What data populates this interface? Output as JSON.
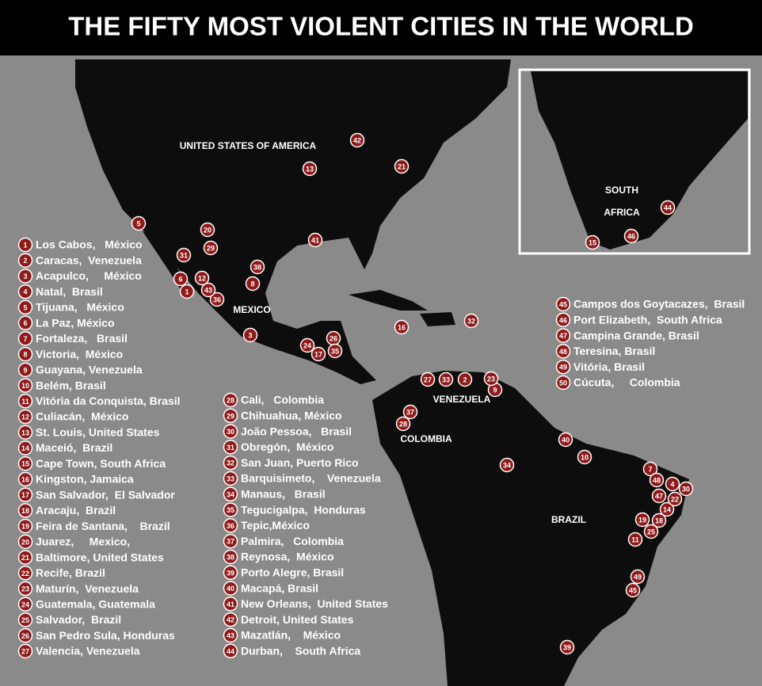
{
  "title": "THE FIFTY MOST VIOLENT CITIES IN THE WORLD",
  "country_labels": [
    "UNITED STATES OF AMERICA",
    "MEXICO",
    "VENEZUELA",
    "COLOMBIA",
    "BRAZIL"
  ],
  "inset_labels": [
    "SOUTH",
    "AFRICA"
  ],
  "cities": [
    {
      "rank": 1,
      "name": "Los Cabos,   México"
    },
    {
      "rank": 2,
      "name": "Caracas,  Venezuela"
    },
    {
      "rank": 3,
      "name": "Acapulco,     México"
    },
    {
      "rank": 4,
      "name": "Natal,  Brasil"
    },
    {
      "rank": 5,
      "name": "Tijuana,   México"
    },
    {
      "rank": 6,
      "name": "La Paz, México"
    },
    {
      "rank": 7,
      "name": "Fortaleza,   Brasil"
    },
    {
      "rank": 8,
      "name": "Victoria,  México"
    },
    {
      "rank": 9,
      "name": "Guayana, Venezuela"
    },
    {
      "rank": 10,
      "name": "Belém, Brasil"
    },
    {
      "rank": 11,
      "name": "Vitória da Conquista, Brasil"
    },
    {
      "rank": 12,
      "name": "Culiacán,  México"
    },
    {
      "rank": 13,
      "name": "St. Louis, United States"
    },
    {
      "rank": 14,
      "name": "Maceió,  Brazil"
    },
    {
      "rank": 15,
      "name": "Cape Town, South Africa"
    },
    {
      "rank": 16,
      "name": "Kingston, Jamaica"
    },
    {
      "rank": 17,
      "name": "San Salvador,  El Salvador"
    },
    {
      "rank": 18,
      "name": "Aracaju,  Brazil"
    },
    {
      "rank": 19,
      "name": "Feira de Santana,    Brazil"
    },
    {
      "rank": 20,
      "name": "Juarez,     Mexico,"
    },
    {
      "rank": 21,
      "name": "Baltimore, United States"
    },
    {
      "rank": 22,
      "name": "Recife, Brazil"
    },
    {
      "rank": 23,
      "name": "Maturín,  Venezuela"
    },
    {
      "rank": 24,
      "name": "Guatemala, Guatemala"
    },
    {
      "rank": 25,
      "name": "Salvador,  Brazil"
    },
    {
      "rank": 26,
      "name": "San Pedro Sula, Honduras"
    },
    {
      "rank": 27,
      "name": "Valencia, Venezuela"
    },
    {
      "rank": 28,
      "name": "Cali,   Colombia"
    },
    {
      "rank": 29,
      "name": "Chihuahua, México"
    },
    {
      "rank": 30,
      "name": "João Pessoa,   Brasil"
    },
    {
      "rank": 31,
      "name": "Obregón,  México"
    },
    {
      "rank": 32,
      "name": "San Juan, Puerto Rico"
    },
    {
      "rank": 33,
      "name": "Barquisimeto,    Venezuela"
    },
    {
      "rank": 34,
      "name": "Manaus,   Brasil"
    },
    {
      "rank": 35,
      "name": "Tegucigalpa,  Honduras"
    },
    {
      "rank": 36,
      "name": "Tepic,México"
    },
    {
      "rank": 37,
      "name": "Palmira,   Colombia"
    },
    {
      "rank": 38,
      "name": "Reynosa,  México"
    },
    {
      "rank": 39,
      "name": "Porto Alegre, Brasil"
    },
    {
      "rank": 40,
      "name": "Macapá, Brasil"
    },
    {
      "rank": 41,
      "name": "New Orleans,  United States"
    },
    {
      "rank": 42,
      "name": "Detroit, United States"
    },
    {
      "rank": 43,
      "name": "Mazatlán,    México"
    },
    {
      "rank": 44,
      "name": "Durban,    South Africa"
    },
    {
      "rank": 45,
      "name": "Campos dos Goytacazes,  Brasil"
    },
    {
      "rank": 46,
      "name": "Port Elizabeth,  South Africa"
    },
    {
      "rank": 47,
      "name": "Campina Grande, Brasil"
    },
    {
      "rank": 48,
      "name": "Teresina, Brasil"
    },
    {
      "rank": 49,
      "name": "Vitória, Brasil"
    },
    {
      "rank": 50,
      "name": "Cúcuta,     Colombia"
    }
  ]
}
